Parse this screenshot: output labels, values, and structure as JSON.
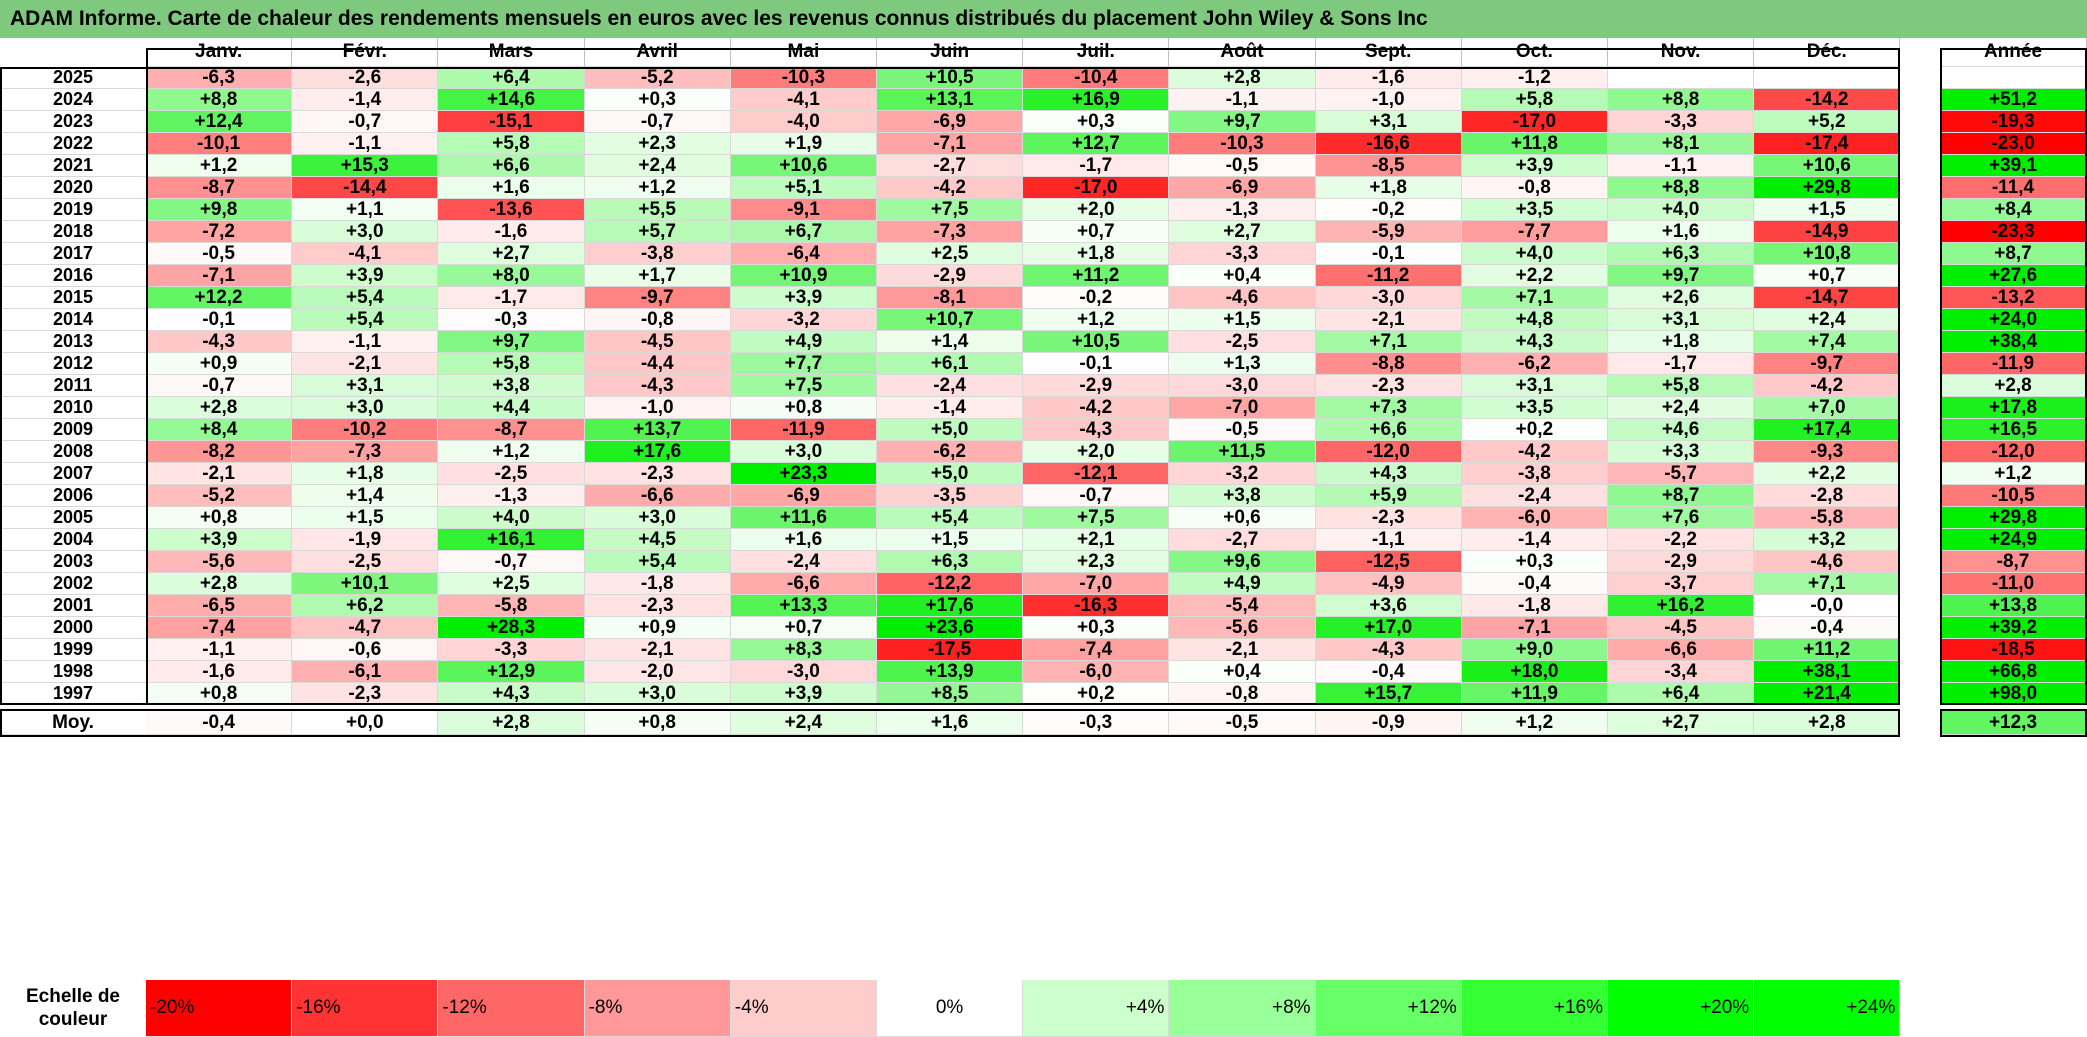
{
  "title": "ADAM Informe. Carte de chaleur des rendements mensuels en euros avec les revenus connus distribués du placement John Wiley & Sons Inc",
  "chart_data": {
    "type": "heatmap",
    "months": [
      "Janv.",
      "Févr.",
      "Mars",
      "Avril",
      "Mai",
      "Juin",
      "Juil.",
      "Août",
      "Sept.",
      "Oct.",
      "Nov.",
      "Déc."
    ],
    "annual_label": "Année",
    "average_label": "Moy.",
    "rows": [
      {
        "year": "2025",
        "values": [
          -6.3,
          -2.6,
          6.4,
          -5.2,
          -10.3,
          10.5,
          -10.4,
          2.8,
          -1.6,
          -1.2,
          null,
          null
        ],
        "annual": null
      },
      {
        "year": "2024",
        "values": [
          8.8,
          -1.4,
          14.6,
          0.3,
          -4.1,
          13.1,
          16.9,
          -1.1,
          -1.0,
          5.8,
          8.8,
          -14.2
        ],
        "annual": 51.2
      },
      {
        "year": "2023",
        "values": [
          12.4,
          -0.7,
          -15.1,
          -0.7,
          -4.0,
          -6.9,
          0.3,
          9.7,
          3.1,
          -17.0,
          -3.3,
          5.2
        ],
        "annual": -19.3
      },
      {
        "year": "2022",
        "values": [
          -10.1,
          -1.1,
          5.8,
          2.3,
          1.9,
          -7.1,
          12.7,
          -10.3,
          -16.6,
          11.8,
          8.1,
          -17.4
        ],
        "annual": -23.0
      },
      {
        "year": "2021",
        "values": [
          1.2,
          15.3,
          6.6,
          2.4,
          10.6,
          -2.7,
          -1.7,
          -0.5,
          -8.5,
          3.9,
          -1.1,
          10.6
        ],
        "annual": 39.1
      },
      {
        "year": "2020",
        "values": [
          -8.7,
          -14.4,
          1.6,
          1.2,
          5.1,
          -4.2,
          -17.0,
          -6.9,
          1.8,
          -0.8,
          8.8,
          29.8
        ],
        "annual": -11.4
      },
      {
        "year": "2019",
        "values": [
          9.8,
          1.1,
          -13.6,
          5.5,
          -9.1,
          7.5,
          2.0,
          -1.3,
          -0.2,
          3.5,
          4.0,
          1.5
        ],
        "annual": 8.4
      },
      {
        "year": "2018",
        "values": [
          -7.2,
          3.0,
          -1.6,
          5.7,
          6.7,
          -7.3,
          0.7,
          2.7,
          -5.9,
          -7.7,
          1.6,
          -14.9
        ],
        "annual": -23.3
      },
      {
        "year": "2017",
        "values": [
          -0.5,
          -4.1,
          2.7,
          -3.8,
          -6.4,
          2.5,
          1.8,
          -3.3,
          -0.1,
          4.0,
          6.3,
          10.8
        ],
        "annual": 8.7
      },
      {
        "year": "2016",
        "values": [
          -7.1,
          3.9,
          8.0,
          1.7,
          10.9,
          -2.9,
          11.2,
          0.4,
          -11.2,
          2.2,
          9.7,
          0.7
        ],
        "annual": 27.6
      },
      {
        "year": "2015",
        "values": [
          12.2,
          5.4,
          -1.7,
          -9.7,
          3.9,
          -8.1,
          -0.2,
          -4.6,
          -3.0,
          7.1,
          2.6,
          -14.7
        ],
        "annual": -13.2
      },
      {
        "year": "2014",
        "values": [
          -0.1,
          5.4,
          -0.3,
          -0.8,
          -3.2,
          10.7,
          1.2,
          1.5,
          -2.1,
          4.8,
          3.1,
          2.4
        ],
        "annual": 24.0
      },
      {
        "year": "2013",
        "values": [
          -4.3,
          -1.1,
          9.7,
          -4.5,
          4.9,
          1.4,
          10.5,
          -2.5,
          7.1,
          4.3,
          1.8,
          7.4
        ],
        "annual": 38.4
      },
      {
        "year": "2012",
        "values": [
          0.9,
          -2.1,
          5.8,
          -4.4,
          7.7,
          6.1,
          -0.1,
          1.3,
          -8.8,
          -6.2,
          -1.7,
          -9.7
        ],
        "annual": -11.9
      },
      {
        "year": "2011",
        "values": [
          -0.7,
          3.1,
          3.8,
          -4.3,
          7.5,
          -2.4,
          -2.9,
          -3.0,
          -2.3,
          3.1,
          5.8,
          -4.2
        ],
        "annual": 2.8
      },
      {
        "year": "2010",
        "values": [
          2.8,
          3.0,
          4.4,
          -1.0,
          0.8,
          -1.4,
          -4.2,
          -7.0,
          7.3,
          3.5,
          2.4,
          7.0
        ],
        "annual": 17.8
      },
      {
        "year": "2009",
        "values": [
          8.4,
          -10.2,
          -8.7,
          13.7,
          -11.9,
          5.0,
          -4.3,
          -0.5,
          6.6,
          0.2,
          4.6,
          17.4
        ],
        "annual": 16.5
      },
      {
        "year": "2008",
        "values": [
          -8.2,
          -7.3,
          1.2,
          17.6,
          3.0,
          -6.2,
          2.0,
          11.5,
          -12.0,
          -4.2,
          3.3,
          -9.3
        ],
        "annual": -12.0
      },
      {
        "year": "2007",
        "values": [
          -2.1,
          1.8,
          -2.5,
          -2.3,
          23.3,
          5.0,
          -12.1,
          -3.2,
          4.3,
          -3.8,
          -5.7,
          2.2
        ],
        "annual": 1.2
      },
      {
        "year": "2006",
        "values": [
          -5.2,
          1.4,
          -1.3,
          -6.6,
          -6.9,
          -3.5,
          -0.7,
          3.8,
          5.9,
          -2.4,
          8.7,
          -2.8
        ],
        "annual": -10.5
      },
      {
        "year": "2005",
        "values": [
          0.8,
          1.5,
          4.0,
          3.0,
          11.6,
          5.4,
          7.5,
          0.6,
          -2.3,
          -6.0,
          7.6,
          -5.8
        ],
        "annual": 29.8
      },
      {
        "year": "2004",
        "values": [
          3.9,
          -1.9,
          16.1,
          4.5,
          1.6,
          1.5,
          2.1,
          -2.7,
          -1.1,
          -1.4,
          -2.2,
          3.2
        ],
        "annual": 24.9
      },
      {
        "year": "2003",
        "values": [
          -5.6,
          -2.5,
          -0.7,
          5.4,
          -2.4,
          6.3,
          2.3,
          9.6,
          -12.5,
          0.3,
          -2.9,
          -4.6
        ],
        "annual": -8.7
      },
      {
        "year": "2002",
        "values": [
          2.8,
          10.1,
          2.5,
          -1.8,
          -6.6,
          -12.2,
          -7.0,
          4.9,
          -4.9,
          -0.4,
          -3.7,
          7.1
        ],
        "annual": -11.0
      },
      {
        "year": "2001",
        "values": [
          -6.5,
          6.2,
          -5.8,
          -2.3,
          13.3,
          17.6,
          -16.3,
          -5.4,
          3.6,
          -1.8,
          16.2,
          "-0,0"
        ],
        "annual": 13.8
      },
      {
        "year": "2000",
        "values": [
          -7.4,
          -4.7,
          28.3,
          0.9,
          0.7,
          23.6,
          0.3,
          -5.6,
          17.0,
          -7.1,
          -4.5,
          -0.4
        ],
        "annual": 39.2
      },
      {
        "year": "1999",
        "values": [
          -1.1,
          -0.6,
          -3.3,
          -2.1,
          8.3,
          -17.5,
          -7.4,
          -2.1,
          -4.3,
          9.0,
          -6.6,
          11.2
        ],
        "annual": -18.5
      },
      {
        "year": "1998",
        "values": [
          -1.6,
          -6.1,
          12.9,
          -2.0,
          -3.0,
          13.9,
          -6.0,
          0.4,
          -0.4,
          18.0,
          -3.4,
          38.1
        ],
        "annual": 66.8
      },
      {
        "year": "1997",
        "values": [
          0.8,
          -2.3,
          4.3,
          3.0,
          3.9,
          8.5,
          0.2,
          -0.8,
          15.7,
          11.9,
          6.4,
          21.4
        ],
        "annual": 98.0
      }
    ],
    "averages": [
      -0.4,
      0.0,
      2.8,
      0.8,
      2.4,
      1.6,
      -0.3,
      -0.5,
      -0.9,
      1.2,
      2.7,
      2.8
    ],
    "average_annual": 12.3
  },
  "scale": {
    "label_line1": "Echelle de",
    "label_line2": "couleur",
    "items": [
      {
        "label": "-20%",
        "value": -20,
        "color": "#ff0000"
      },
      {
        "label": "-16%",
        "value": -16,
        "color": "#ff3333"
      },
      {
        "label": "-12%",
        "value": -12,
        "color": "#ff6666"
      },
      {
        "label": "-8%",
        "value": -8,
        "color": "#ff9999"
      },
      {
        "label": "-4%",
        "value": -4,
        "color": "#ffcccc"
      },
      {
        "label": "0%",
        "value": 0,
        "color": "#ffffff"
      },
      {
        "label": "+4%",
        "value": 4,
        "color": "#ccffcc"
      },
      {
        "label": "+8%",
        "value": 8,
        "color": "#99ff99"
      },
      {
        "label": "+12%",
        "value": 12,
        "color": "#66ff66"
      },
      {
        "label": "+16%",
        "value": 16,
        "color": "#33ff33"
      },
      {
        "label": "+20%",
        "value": 20,
        "color": "#00ff00"
      },
      {
        "label": "+24%",
        "value": 24,
        "color": "#00ff00"
      }
    ]
  },
  "colors": {
    "title_bar": "#7fc97f",
    "negative_max": "#ff0000",
    "positive_max": "#00ee00",
    "neutral": "#ffffff"
  }
}
